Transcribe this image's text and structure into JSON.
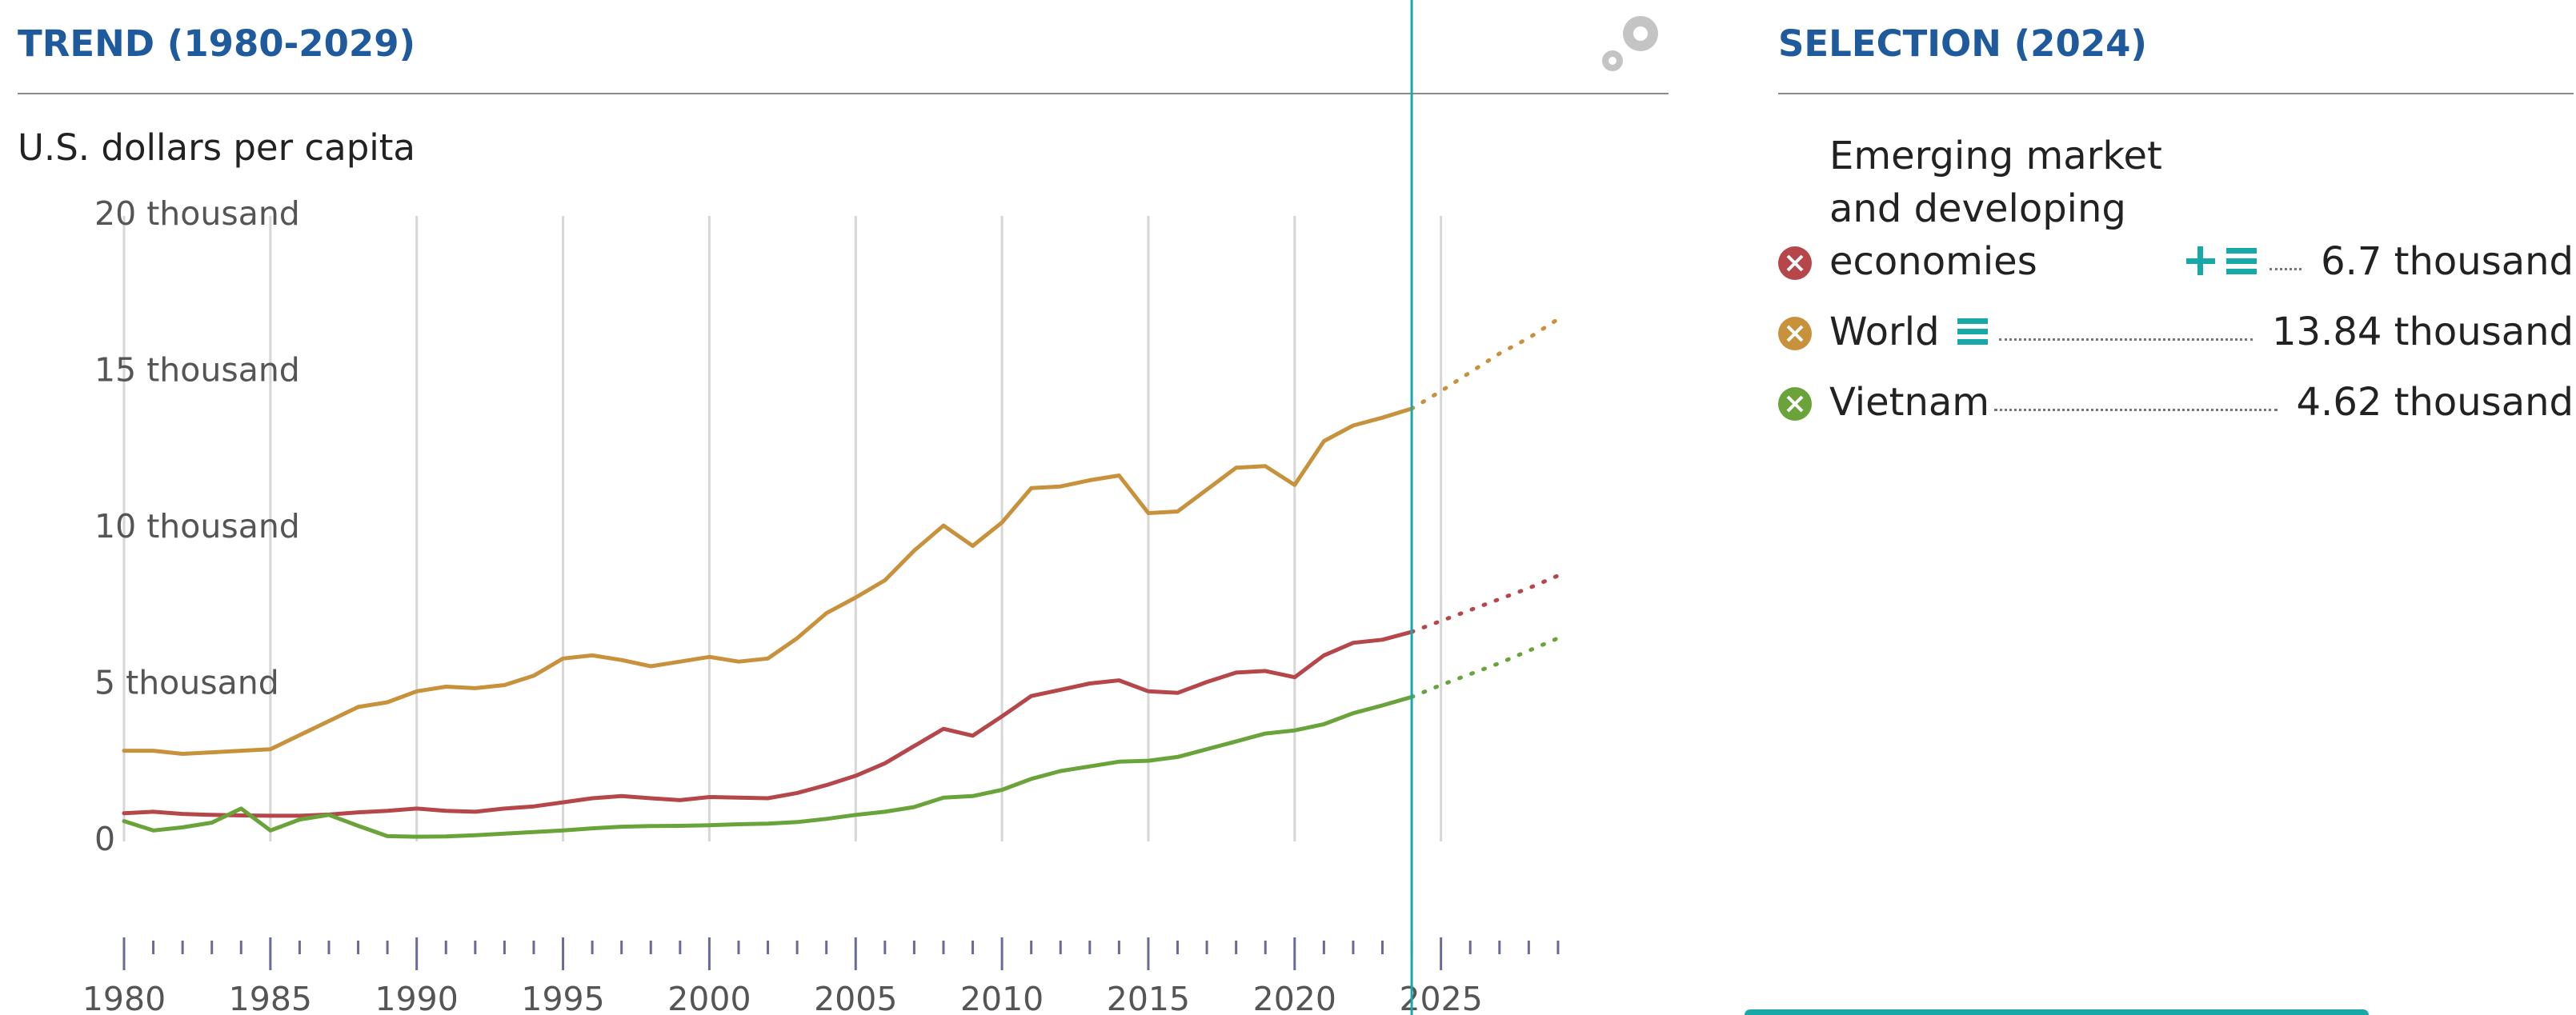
{
  "chart_data": {
    "type": "line",
    "title": "TREND (1980-2029)",
    "y_label": "U.S. dollars per capita",
    "selection_title": "SELECTION (2024)",
    "selected_x": 2024,
    "forecast_from": 2024,
    "x": [
      1980,
      1981,
      1982,
      1983,
      1984,
      1985,
      1986,
      1987,
      1988,
      1989,
      1990,
      1991,
      1992,
      1993,
      1994,
      1995,
      1996,
      1997,
      1998,
      1999,
      2000,
      2001,
      2002,
      2003,
      2004,
      2005,
      2006,
      2007,
      2008,
      2009,
      2010,
      2011,
      2012,
      2013,
      2014,
      2015,
      2016,
      2017,
      2018,
      2019,
      2020,
      2021,
      2022,
      2023,
      2024,
      2025,
      2026,
      2027,
      2028,
      2029
    ],
    "xlim": [
      1980,
      2029
    ],
    "xticks": [
      1980,
      1985,
      1990,
      1995,
      2000,
      2005,
      2010,
      2015,
      2020,
      2025
    ],
    "xticks_minor": [
      1981,
      1982,
      1983,
      1984,
      1986,
      1987,
      1988,
      1989,
      1991,
      1992,
      1993,
      1994,
      1996,
      1997,
      1998,
      1999,
      2001,
      2002,
      2003,
      2004,
      2006,
      2007,
      2008,
      2009,
      2011,
      2012,
      2013,
      2014,
      2016,
      2017,
      2018,
      2019,
      2021,
      2022,
      2023,
      2024,
      2026,
      2027,
      2028,
      2029
    ],
    "ylim": [
      0,
      20000
    ],
    "yticks": [
      0,
      {
        "value": 5000,
        "label": "5 thousand"
      },
      {
        "value": 10000,
        "label": "10 thousand"
      },
      {
        "value": 15000,
        "label": "15 thousand"
      },
      {
        "value": 20000,
        "label": "20 thousand"
      }
    ],
    "grid": true,
    "series": [
      {
        "name": "Emerging market and developing economies",
        "color": "#b5474b",
        "selected_value_label": "6.7 thousand",
        "values": [
          900,
          950,
          880,
          850,
          830,
          820,
          820,
          860,
          930,
          980,
          1050,
          980,
          950,
          1050,
          1120,
          1250,
          1380,
          1450,
          1380,
          1320,
          1420,
          1400,
          1380,
          1550,
          1800,
          2100,
          2500,
          3050,
          3600,
          3380,
          4000,
          4650,
          4850,
          5050,
          5150,
          4800,
          4750,
          5100,
          5400,
          5450,
          5250,
          5950,
          6350,
          6450,
          6700,
          7050,
          7400,
          7750,
          8100,
          8500
        ]
      },
      {
        "name": "World",
        "color": "#c8923c",
        "selected_value_label": "13.84 thousand",
        "values": [
          2900,
          2900,
          2800,
          2850,
          2900,
          2950,
          3400,
          3850,
          4300,
          4450,
          4800,
          4950,
          4900,
          5000,
          5300,
          5850,
          5950,
          5800,
          5600,
          5750,
          5900,
          5750,
          5850,
          6500,
          7300,
          7800,
          8350,
          9300,
          10100,
          9450,
          10200,
          11300,
          11350,
          11550,
          11700,
          10500,
          10550,
          11250,
          11950,
          12000,
          11400,
          12800,
          13300,
          13550,
          13840,
          14400,
          15000,
          15600,
          16100,
          16700
        ]
      },
      {
        "name": "Vietnam",
        "color": "#6aa339",
        "selected_value_label": "4.62 thousand",
        "values": [
          650,
          350,
          450,
          600,
          1050,
          350,
          700,
          850,
          500,
          170,
          150,
          160,
          200,
          250,
          300,
          350,
          420,
          470,
          490,
          500,
          520,
          550,
          570,
          620,
          720,
          850,
          950,
          1100,
          1400,
          1450,
          1650,
          2000,
          2250,
          2400,
          2550,
          2580,
          2700,
          2950,
          3200,
          3450,
          3550,
          3750,
          4100,
          4350,
          4620,
          5000,
          5350,
          5700,
          6100,
          6500
        ]
      }
    ]
  }
}
